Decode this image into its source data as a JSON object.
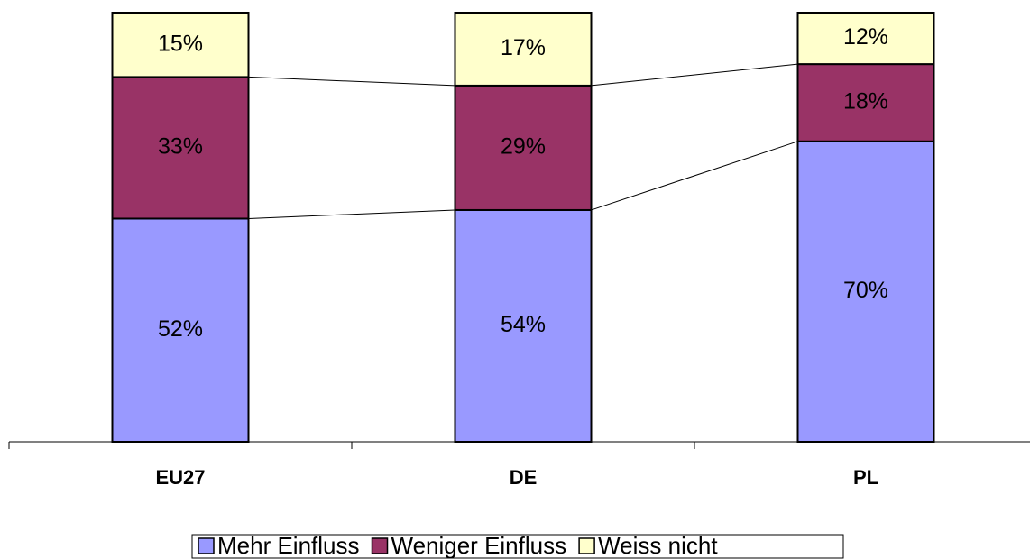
{
  "chart_data": {
    "type": "stacked_bar",
    "categories": [
      "EU27",
      "DE",
      "PL"
    ],
    "series": [
      {
        "name": "Mehr Einfluss",
        "color": "#9999ff",
        "values": [
          52,
          54,
          70
        ],
        "value_labels": [
          "52%",
          "54%",
          "70%"
        ]
      },
      {
        "name": "Weniger Einfluss",
        "color": "#993366",
        "values": [
          33,
          29,
          18
        ],
        "value_labels": [
          "33%",
          "29%",
          "18%"
        ]
      },
      {
        "name": "Weiss nicht",
        "color": "#ffffcc",
        "values": [
          15,
          17,
          12
        ],
        "value_labels": [
          "15%",
          "17%",
          "12%"
        ]
      }
    ],
    "ylim": [
      0,
      100
    ],
    "legend": "bottom"
  }
}
